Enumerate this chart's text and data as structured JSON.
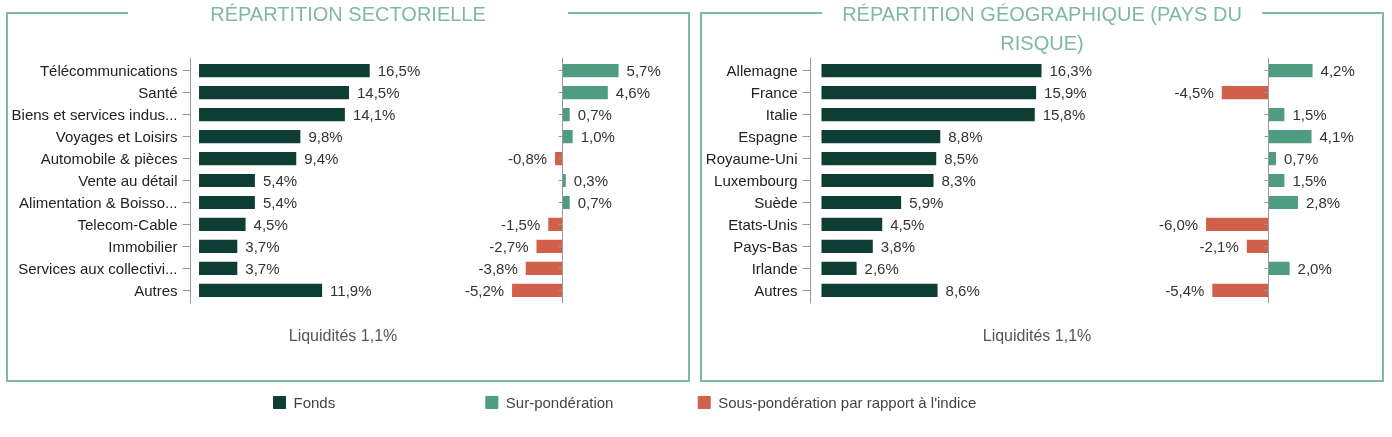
{
  "chart_data": [
    {
      "type": "bar",
      "orientation": "horizontal",
      "title": "RÉPARTITION SECTORIELLE",
      "tick_labels": "y",
      "legend": "bottom",
      "annotations": [
        "Liquidités 1,1%"
      ],
      "categories": [
        "Télécommunications",
        "Santé",
        "Biens et services indus...",
        "Voyages et Loisirs",
        "Automobile & pièces",
        "Vente au détail",
        "Alimentation & Boisso...",
        "Telecom-Cable",
        "Immobilier",
        "Services aux collectivi...",
        "Autres"
      ],
      "series": [
        {
          "name": "Fonds",
          "color": "#0e3d33",
          "values": [
            16.5,
            14.5,
            14.1,
            9.8,
            9.4,
            5.4,
            5.4,
            4.5,
            3.7,
            3.7,
            11.9
          ],
          "value_labels": [
            "16,5%",
            "14,5%",
            "14,1%",
            "9,8%",
            "9,4%",
            "5,4%",
            "5,4%",
            "4,5%",
            "3,7%",
            "3,7%",
            "11,9%"
          ]
        }
      ]
    },
    {
      "type": "bar",
      "orientation": "horizontal",
      "tick_labels": false,
      "legend": "bottom",
      "categories": [
        null,
        null,
        null,
        null,
        null,
        null,
        null,
        null,
        null,
        null,
        null
      ],
      "series": [
        {
          "name": "Sur-pondération",
          "color": "#4f9c80",
          "values": [
            5.7,
            4.6,
            0.7,
            1.0,
            null,
            0.3,
            0.7,
            null,
            null,
            null,
            null
          ],
          "value_labels": [
            "5,7%",
            "4,6%",
            "0,7%",
            "1,0%",
            null,
            "0,3%",
            "0,7%",
            null,
            null,
            null,
            null
          ]
        },
        {
          "name": "Sous-pondération par rapport à l'indice",
          "color": "#d0604a",
          "values": [
            null,
            null,
            null,
            null,
            -0.8,
            null,
            null,
            -1.5,
            -2.7,
            -3.8,
            -5.2
          ],
          "value_labels": [
            null,
            null,
            null,
            null,
            "-0,8%",
            null,
            null,
            "-1,5%",
            "-2,7%",
            "-3,8%",
            "-5,2%"
          ]
        }
      ]
    },
    {
      "type": "bar",
      "orientation": "horizontal",
      "title": "RÉPARTITION GÉOGRAPHIQUE (PAYS DU RISQUE)",
      "tick_labels": "y",
      "annotations": [
        "Liquidités 1,1%"
      ],
      "categories": [
        "Allemagne",
        "France",
        "Italie",
        "Espagne",
        "Royaume-Uni",
        "Luxembourg",
        "Suède",
        "Etats-Unis",
        "Pays-Bas",
        "Irlande",
        "Autres"
      ],
      "series": [
        {
          "color": "#0e3d33",
          "values": [
            16.3,
            15.9,
            15.8,
            8.8,
            8.5,
            8.3,
            5.9,
            4.5,
            3.8,
            2.6,
            8.6
          ],
          "value_labels": [
            "16,3%",
            "15,9%",
            "15,8%",
            "8,8%",
            "8,5%",
            "8,3%",
            "5,9%",
            "4,5%",
            "3,8%",
            "2,6%",
            "8,6%"
          ]
        }
      ]
    },
    {
      "type": "bar",
      "orientation": "horizontal",
      "tick_labels": false,
      "categories": [
        null,
        null,
        null,
        null,
        null,
        null,
        null,
        null,
        null,
        null,
        null
      ],
      "series": [
        {
          "color": "#4f9c80",
          "values": [
            4.2,
            null,
            1.5,
            4.1,
            0.7,
            1.5,
            2.8,
            null,
            null,
            2.0,
            null
          ],
          "value_labels": [
            "4,2%",
            null,
            "1,5%",
            "4,1%",
            "0,7%",
            "1,5%",
            "2,8%",
            null,
            null,
            "2,0%",
            null
          ]
        },
        {
          "color": "#d0604a",
          "values": [
            null,
            -4.5,
            null,
            null,
            null,
            null,
            null,
            -6.0,
            -2.1,
            null,
            -5.4
          ],
          "value_labels": [
            null,
            "-4,5%",
            null,
            null,
            null,
            null,
            null,
            "-6,0%",
            "-2,1%",
            null,
            "-5,4%"
          ]
        }
      ]
    }
  ]
}
